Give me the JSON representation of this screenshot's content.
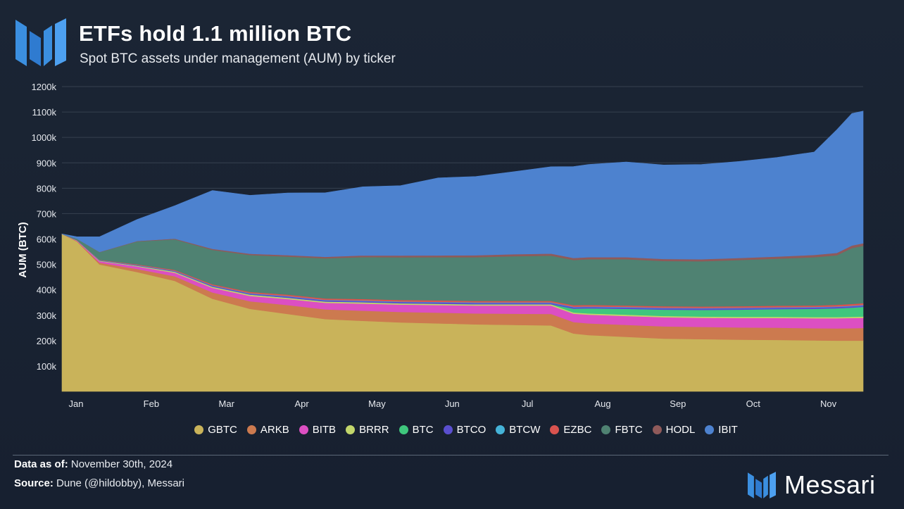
{
  "header": {
    "title": "ETFs hold 1.1 million BTC",
    "subtitle": "Spot BTC assets under management (AUM) by ticker"
  },
  "footer": {
    "data_as_of_label": "Data as of:",
    "data_as_of_value": "November 30th, 2024",
    "source_label": "Source:",
    "source_value": "Dune (@hildobby), Messari",
    "brand_name": "Messari"
  },
  "colors": {
    "background": "#1a2332",
    "gridline": "#3a4558",
    "brand_blue": "#3b8fe0"
  },
  "chart_data": {
    "type": "area",
    "stacked": true,
    "title": "ETFs hold 1.1 million BTC",
    "subtitle": "Spot BTC assets under management (AUM) by ticker",
    "xlabel": "",
    "ylabel": "AUM (BTC)",
    "ylim": [
      0,
      1200000
    ],
    "yticks": [
      100000,
      200000,
      300000,
      400000,
      500000,
      600000,
      700000,
      800000,
      900000,
      1000000,
      1100000,
      1200000
    ],
    "ytick_labels": [
      "100k",
      "200k",
      "300k",
      "400k",
      "500k",
      "600k",
      "700k",
      "800k",
      "900k",
      "1000k",
      "1100k",
      "1200k"
    ],
    "xlim": [
      0,
      10.65
    ],
    "xticks": [
      0.15,
      1.15,
      2.15,
      3.15,
      4.15,
      5.15,
      6.15,
      7.15,
      8.15,
      9.15,
      10.15
    ],
    "xtick_labels": [
      "Jan",
      "Feb",
      "Mar",
      "Apr",
      "May",
      "Jun",
      "Jul",
      "Aug",
      "Sep",
      "Oct",
      "Nov"
    ],
    "grid": true,
    "legend_position": "bottom",
    "x": [
      0,
      0.2,
      0.5,
      1.0,
      1.5,
      2.0,
      2.5,
      3.0,
      3.5,
      4.0,
      4.5,
      5.0,
      5.5,
      6.0,
      6.5,
      6.8,
      7.0,
      7.5,
      8.0,
      8.5,
      9.0,
      9.5,
      10.0,
      10.3,
      10.5,
      10.65
    ],
    "series": [
      {
        "name": "GBTC",
        "color": "#c9b35a",
        "values": [
          620000,
          590000,
          500000,
          470000,
          435000,
          365000,
          325000,
          305000,
          285000,
          278000,
          272000,
          268000,
          264000,
          262000,
          260000,
          228000,
          222000,
          215000,
          208000,
          206000,
          204000,
          203000,
          201000,
          200000,
          200000,
          200000
        ]
      },
      {
        "name": "ARKB",
        "color": "#cc7a4f",
        "values": [
          0,
          2000,
          7000,
          12000,
          18000,
          25000,
          30000,
          35000,
          38000,
          40000,
          41000,
          42000,
          43000,
          44000,
          45000,
          45000,
          46000,
          47000,
          48000,
          48000,
          48000,
          48000,
          48000,
          48000,
          49000,
          50000
        ]
      },
      {
        "name": "BITB",
        "color": "#dc4fc2",
        "values": [
          0,
          2000,
          6000,
          10000,
          14000,
          18000,
          21000,
          24000,
          26000,
          28000,
          29000,
          30000,
          31000,
          32000,
          33000,
          33000,
          34000,
          35000,
          36000,
          36000,
          37000,
          38000,
          39000,
          40000,
          40000,
          40000
        ]
      },
      {
        "name": "BRRR",
        "color": "#c2d66b",
        "values": [
          0,
          500,
          2000,
          3000,
          4000,
          4500,
          5000,
          5000,
          5000,
          5000,
          5000,
          5000,
          5000,
          5000,
          5000,
          5000,
          5000,
          5000,
          5000,
          5000,
          5000,
          5000,
          5000,
          5000,
          5000,
          5000
        ]
      },
      {
        "name": "BTC",
        "color": "#3fc77d",
        "values": [
          0,
          0,
          0,
          0,
          0,
          0,
          0,
          0,
          0,
          0,
          0,
          0,
          0,
          0,
          0,
          15000,
          20000,
          23000,
          25000,
          26000,
          28000,
          30000,
          32000,
          34000,
          36000,
          38000
        ]
      },
      {
        "name": "BTCO",
        "color": "#5a4fcf",
        "values": [
          0,
          500,
          1000,
          2000,
          3000,
          4000,
          4500,
          5000,
          5000,
          5500,
          5500,
          6000,
          6000,
          6000,
          6000,
          6000,
          6000,
          6000,
          6000,
          6000,
          6000,
          6000,
          6000,
          6000,
          6000,
          6000
        ]
      },
      {
        "name": "BTCW",
        "color": "#45b3d8",
        "values": [
          0,
          200,
          500,
          800,
          1000,
          1200,
          1500,
          1500,
          1500,
          1500,
          1500,
          1500,
          1500,
          1500,
          1500,
          1500,
          1500,
          1500,
          1500,
          1500,
          1500,
          1500,
          1500,
          1500,
          1500,
          1500
        ]
      },
      {
        "name": "EZBC",
        "color": "#d9534f",
        "values": [
          0,
          500,
          1500,
          2500,
          3500,
          4500,
          5000,
          5500,
          5500,
          6000,
          6000,
          6000,
          6000,
          6000,
          6000,
          6000,
          6000,
          6000,
          6000,
          6000,
          6000,
          6000,
          6000,
          6500,
          7000,
          7000
        ]
      },
      {
        "name": "FBTC",
        "color": "#4f8272",
        "values": [
          0,
          5000,
          30000,
          90000,
          120000,
          135000,
          145000,
          150000,
          158000,
          165000,
          168000,
          170000,
          172000,
          176000,
          178000,
          178000,
          180000,
          182000,
          178000,
          178000,
          182000,
          185000,
          190000,
          195000,
          220000,
          226000
        ]
      },
      {
        "name": "HODL",
        "color": "#8f5a5a",
        "values": [
          0,
          200,
          1000,
          2000,
          3000,
          4000,
          5000,
          5500,
          6000,
          6500,
          7000,
          7000,
          7500,
          7500,
          8000,
          8000,
          8000,
          8000,
          8000,
          8000,
          8000,
          8500,
          9000,
          9500,
          10000,
          10000
        ]
      },
      {
        "name": "IBIT",
        "color": "#4d82cf",
        "values": [
          0,
          8000,
          60000,
          85000,
          130000,
          230000,
          230000,
          245000,
          252000,
          270000,
          275000,
          305000,
          310000,
          325000,
          342000,
          360000,
          365000,
          375000,
          370000,
          373000,
          380000,
          390000,
          405000,
          485000,
          520000,
          520000
        ]
      }
    ]
  }
}
